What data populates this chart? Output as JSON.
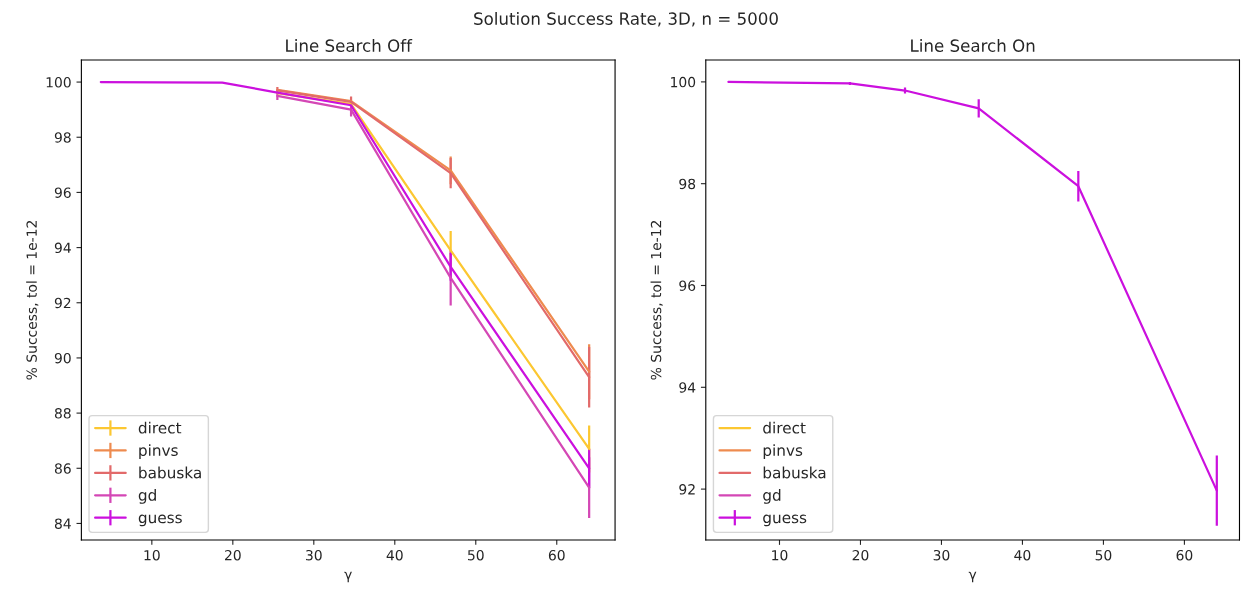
{
  "chart_data": [
    {
      "type": "line",
      "title": "Line Search Off",
      "xlabel": "γ",
      "ylabel": "% Success, tol = 1e-12",
      "annotations": [
        "Solution Success Rate, 3D, n = 5000"
      ],
      "x": [
        3.7,
        18.7,
        25.5,
        34.6,
        46.9,
        64
      ],
      "xlim": [
        1.3,
        67.2
      ],
      "xticks": [
        10,
        20,
        30,
        40,
        50,
        60
      ],
      "ylim": [
        83.4,
        100.8
      ],
      "yticks": [
        84,
        86,
        88,
        90,
        92,
        94,
        96,
        98,
        100
      ],
      "legend": "bottom left",
      "grid": false,
      "marker": "none",
      "series": [
        {
          "name": "direct",
          "color": "#fcc731",
          "values": [
            null,
            null,
            99.6,
            99.2,
            93.9,
            86.7
          ],
          "errors": [
            null,
            null,
            null,
            null,
            0.7,
            0.85
          ]
        },
        {
          "name": "pinvs",
          "color": "#ee8b4f",
          "values": [
            null,
            null,
            99.72,
            99.31,
            96.8,
            89.5
          ],
          "errors": [
            null,
            null,
            null,
            null,
            0.5,
            1.0
          ]
        },
        {
          "name": "babuska",
          "color": "#e26a6a",
          "values": [
            null,
            null,
            99.7,
            99.28,
            96.7,
            89.3
          ],
          "errors": [
            null,
            null,
            0.12,
            0.2,
            0.55,
            1.1
          ]
        },
        {
          "name": "gd",
          "color": "#d447b5",
          "values": [
            null,
            null,
            99.5,
            99.0,
            92.9,
            85.3
          ],
          "errors": [
            null,
            null,
            0.15,
            0.25,
            1.0,
            1.1
          ]
        },
        {
          "name": "guess",
          "color": "#cb10de",
          "values": [
            100,
            99.98,
            99.62,
            99.16,
            93.3,
            86.0
          ],
          "errors": [
            null,
            null,
            null,
            null,
            0.5,
            0.7
          ]
        }
      ]
    },
    {
      "type": "line",
      "title": "Line Search On",
      "xlabel": "γ",
      "ylabel": "% Success, tol = 1e-12",
      "x": [
        3.7,
        18.7,
        25.5,
        34.6,
        46.9,
        64
      ],
      "xlim": [
        0.9,
        66.8
      ],
      "xticks": [
        10,
        20,
        30,
        40,
        50,
        60
      ],
      "ylim": [
        91.0,
        100.43
      ],
      "yticks": [
        92,
        94,
        96,
        98,
        100
      ],
      "legend": "bottom left",
      "grid": false,
      "marker": "none",
      "series": [
        {
          "name": "direct",
          "color": "#fcc731",
          "values": [
            null,
            null,
            null,
            null,
            null,
            null
          ]
        },
        {
          "name": "pinvs",
          "color": "#ee8b4f",
          "values": [
            null,
            null,
            null,
            null,
            null,
            null
          ]
        },
        {
          "name": "babuska",
          "color": "#e26a6a",
          "values": [
            null,
            null,
            null,
            null,
            null,
            null
          ]
        },
        {
          "name": "gd",
          "color": "#d447b5",
          "values": [
            null,
            null,
            null,
            null,
            null,
            null
          ]
        },
        {
          "name": "guess",
          "color": "#cb10de",
          "values": [
            100,
            99.97,
            99.83,
            99.48,
            97.95,
            91.97
          ],
          "errors": [
            null,
            0.03,
            0.06,
            0.18,
            0.3,
            0.69
          ]
        }
      ]
    }
  ]
}
